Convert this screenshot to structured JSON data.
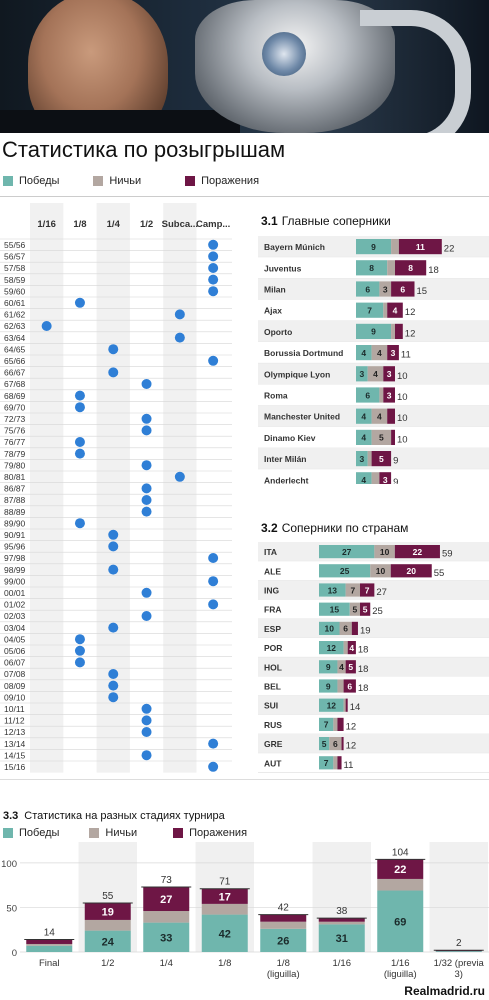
{
  "page_title": "Статистика по розыгрышам",
  "legend": {
    "wins": "Победы",
    "draws": "Ничьи",
    "losses": "Поражения"
  },
  "colors": {
    "wins": "#6fb6ad",
    "draws": "#b3a7a1",
    "losses": "#6e1645",
    "dot": "#2f7fd6"
  },
  "hero_icons": [
    "coach-photo",
    "trophy-icon",
    "club-crest-icon"
  ],
  "footer": "Realmadrid.ru",
  "chart_data": [
    {
      "type": "scatter",
      "id": "rounds-matrix",
      "columns": [
        "1/16",
        "1/8",
        "1/4",
        "1/2",
        "Subca...",
        "Camp..."
      ],
      "seasons": [
        "55/56",
        "56/57",
        "57/58",
        "58/59",
        "59/60",
        "60/61",
        "61/62",
        "62/63",
        "63/64",
        "64/65",
        "65/66",
        "66/67",
        "67/68",
        "68/69",
        "69/70",
        "72/73",
        "75/76",
        "76/77",
        "78/79",
        "79/80",
        "80/81",
        "86/87",
        "87/88",
        "88/89",
        "89/90",
        "90/91",
        "95/96",
        "97/98",
        "98/99",
        "99/00",
        "00/01",
        "01/02",
        "02/03",
        "03/04",
        "04/05",
        "05/06",
        "06/07",
        "07/08",
        "08/09",
        "09/10",
        "10/11",
        "11/12",
        "12/13",
        "13/14",
        "14/15",
        "15/16"
      ],
      "reached": [
        "Camp...",
        "Camp...",
        "Camp...",
        "Camp...",
        "Camp...",
        "1/8",
        "Subca...",
        "1/16",
        "Subca...",
        "1/4",
        "Camp...",
        "1/4",
        "1/2",
        "1/8",
        "1/8",
        "1/2",
        "1/2",
        "1/8",
        "1/8",
        "1/2",
        "Subca...",
        "1/2",
        "1/2",
        "1/2",
        "1/8",
        "1/4",
        "1/4",
        "Camp...",
        "1/4",
        "Camp...",
        "1/2",
        "Camp...",
        "1/2",
        "1/4",
        "1/8",
        "1/8",
        "1/8",
        "1/4",
        "1/4",
        "1/4",
        "1/2",
        "1/2",
        "1/2",
        "Camp...",
        "1/2",
        "Camp..."
      ]
    },
    {
      "type": "bar",
      "id": "3.1",
      "section_number": "3.1",
      "title": "Главные соперники",
      "stacked": true,
      "categories": [
        "Bayern Múnich",
        "Juventus",
        "Milan",
        "Ajax",
        "Oporto",
        "Borussia Dortmund",
        "Olympique Lyon",
        "Roma",
        "Manchester United",
        "Dinamo Kiev",
        "Inter Milán",
        "Anderlecht"
      ],
      "totals": [
        22,
        18,
        15,
        12,
        12,
        11,
        10,
        10,
        10,
        10,
        9,
        9
      ],
      "series": [
        {
          "key": "wins",
          "values": [
            9,
            8,
            6,
            7,
            9,
            4,
            3,
            6,
            4,
            4,
            3,
            4
          ]
        },
        {
          "key": "draws",
          "values": [
            2,
            2,
            3,
            1,
            1,
            4,
            4,
            1,
            4,
            5,
            1,
            2
          ]
        },
        {
          "key": "losses",
          "values": [
            11,
            8,
            6,
            4,
            2,
            3,
            3,
            3,
            2,
            1,
            5,
            3
          ]
        }
      ]
    },
    {
      "type": "bar",
      "id": "3.2",
      "section_number": "3.2",
      "title": "Соперники по странам",
      "stacked": true,
      "categories": [
        "ITA",
        "ALE",
        "ING",
        "FRA",
        "ESP",
        "POR",
        "HOL",
        "BEL",
        "SUI",
        "RUS",
        "GRE",
        "AUT"
      ],
      "totals": [
        59,
        55,
        27,
        25,
        19,
        18,
        18,
        18,
        14,
        12,
        12,
        11
      ],
      "series": [
        {
          "key": "wins",
          "values": [
            27,
            25,
            13,
            15,
            10,
            12,
            9,
            9,
            12,
            7,
            5,
            7
          ]
        },
        {
          "key": "draws",
          "values": [
            10,
            10,
            7,
            5,
            6,
            2,
            4,
            3,
            1,
            2,
            6,
            2
          ]
        },
        {
          "key": "losses",
          "values": [
            22,
            20,
            7,
            5,
            3,
            4,
            5,
            6,
            1,
            3,
            1,
            2
          ]
        }
      ]
    },
    {
      "type": "bar",
      "id": "3.3",
      "section_number": "3.3",
      "title": "Статистика на разных стадиях турнира",
      "stacked": true,
      "categories": [
        "Final",
        "1/2",
        "1/4",
        "1/8",
        "1/8 (liguilla)",
        "1/16",
        "1/16 (liguilla)",
        "1/32 (previa 3)"
      ],
      "totals": [
        14,
        55,
        73,
        71,
        42,
        38,
        104,
        2
      ],
      "ylim": [
        0,
        110
      ],
      "yticks": [
        0,
        50,
        100
      ],
      "series": [
        {
          "key": "wins",
          "values": [
            7,
            24,
            33,
            42,
            26,
            31,
            69,
            1
          ]
        },
        {
          "key": "draws",
          "values": [
            2,
            12,
            13,
            12,
            8,
            3,
            13,
            0
          ]
        },
        {
          "key": "losses",
          "values": [
            5,
            19,
            27,
            17,
            8,
            4,
            22,
            1
          ]
        }
      ],
      "label_values": {
        "wins": [
          null,
          24,
          33,
          42,
          26,
          31,
          69,
          null
        ],
        "losses": [
          null,
          19,
          27,
          17,
          null,
          null,
          22,
          null
        ]
      }
    }
  ]
}
